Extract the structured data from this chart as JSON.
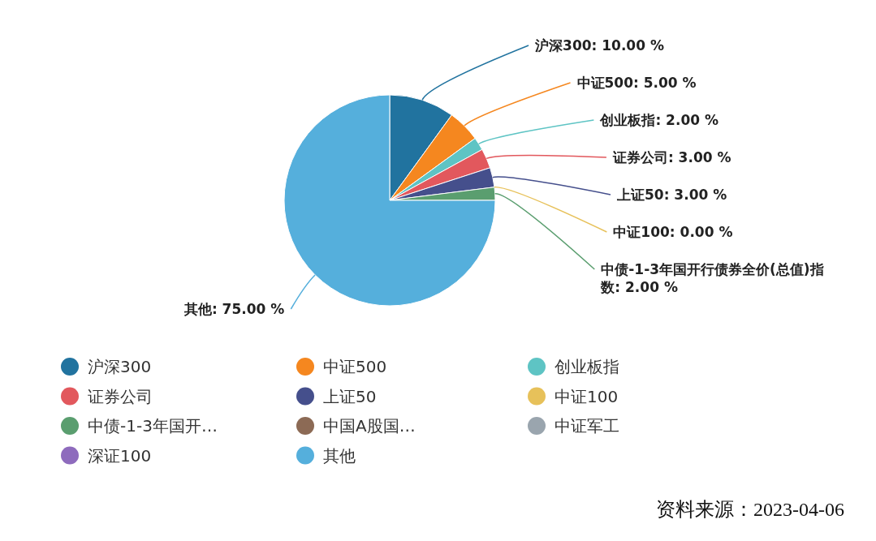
{
  "chart_data": {
    "type": "pie",
    "categories": [
      "沪深300",
      "中证500",
      "创业板指",
      "证券公司",
      "上证50",
      "中证100",
      "中债-1-3年国开…",
      "中国A股国…",
      "中证军工",
      "深证100",
      "其他"
    ],
    "values": [
      10,
      5,
      2,
      3,
      3,
      0,
      2,
      0,
      0,
      0,
      75
    ],
    "value_labels": [
      "沪深300: 10.00 %",
      "中证500: 5.00 %",
      "创业板指: 2.00 %",
      "证券公司: 3.00 %",
      "上证50: 3.00 %",
      "中证100: 0.00 %",
      "中债-1-3年国开行债券全价(总值)指数: 2.00 %",
      null,
      null,
      null,
      "其他: 75.00 %"
    ],
    "colors": [
      "#21739f",
      "#f5871f",
      "#5ec4c4",
      "#e2585d",
      "#454f8c",
      "#e7c15a",
      "#5a9e6f",
      "#8c6a55",
      "#9aa5ae",
      "#8e6bbd",
      "#55afdc"
    ],
    "legend": "bottom",
    "annotations": [
      "资料来源：2023-04-06"
    ]
  }
}
